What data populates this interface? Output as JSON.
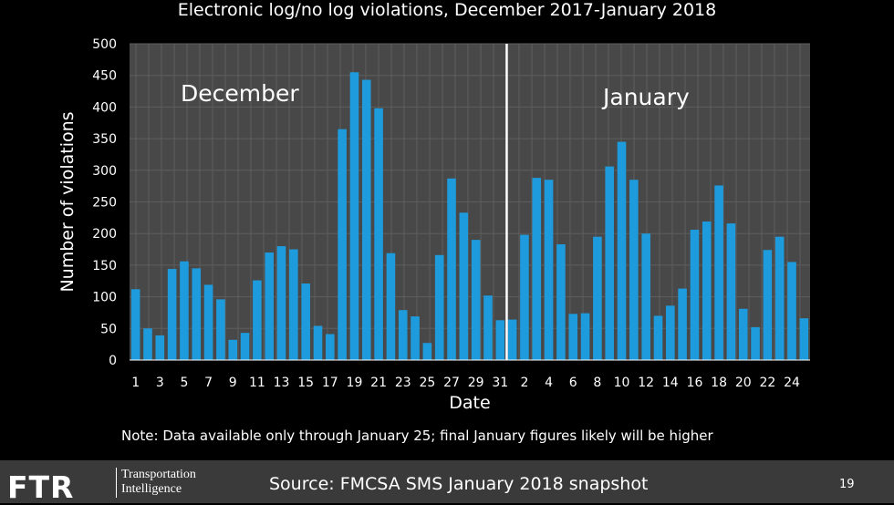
{
  "header": {
    "title": "Electronic log/no log violations, December 2017-January 2018"
  },
  "footer": {
    "logo_text": "FTR",
    "logo_sub_line1": "Transportation",
    "logo_sub_line2": "Intelligence",
    "source": "Source: FMCSA SMS January 2018 snapshot",
    "page_number": "19"
  },
  "note": "Note: Data available only through January 25; final January figures likely will be higher",
  "colors": {
    "bar": "#1e9bdc",
    "plot_bg": "#484848",
    "grid": "#5e5e5e",
    "divider": "#ffffff"
  },
  "chart_data": {
    "type": "bar",
    "title": "Electronic log/no log violations, December 2017-January 2018",
    "xlabel": "Date",
    "ylabel": "Number of violations",
    "ylim": [
      0,
      500
    ],
    "yticks": [
      0,
      50,
      100,
      150,
      200,
      250,
      300,
      350,
      400,
      450,
      500
    ],
    "grid": true,
    "month_labels": [
      {
        "text": "December",
        "series": "december"
      },
      {
        "text": "January",
        "series": "january"
      }
    ],
    "series": [
      {
        "name": "December",
        "key": "december",
        "categories": [
          "1",
          "2",
          "3",
          "4",
          "5",
          "6",
          "7",
          "8",
          "9",
          "10",
          "11",
          "12",
          "13",
          "14",
          "15",
          "16",
          "17",
          "18",
          "19",
          "20",
          "21",
          "22",
          "23",
          "24",
          "25",
          "26",
          "27",
          "28",
          "29",
          "30",
          "31"
        ],
        "tick_labels": [
          "1",
          "3",
          "5",
          "7",
          "9",
          "11",
          "13",
          "15",
          "17",
          "19",
          "21",
          "23",
          "25",
          "27",
          "29",
          "31"
        ],
        "values": [
          112,
          50,
          39,
          144,
          156,
          145,
          119,
          96,
          32,
          43,
          126,
          170,
          180,
          175,
          121,
          54,
          41,
          365,
          455,
          443,
          398,
          169,
          79,
          69,
          27,
          166,
          287,
          233,
          190,
          102,
          63
        ]
      },
      {
        "name": "January",
        "key": "january",
        "categories": [
          "1",
          "2",
          "3",
          "4",
          "5",
          "6",
          "7",
          "8",
          "9",
          "10",
          "11",
          "12",
          "13",
          "14",
          "15",
          "16",
          "17",
          "18",
          "19",
          "20",
          "21",
          "22",
          "23",
          "24",
          "25"
        ],
        "tick_labels": [
          "2",
          "4",
          "6",
          "8",
          "10",
          "12",
          "14",
          "16",
          "18",
          "20",
          "22",
          "24"
        ],
        "values": [
          64,
          198,
          288,
          285,
          183,
          73,
          74,
          195,
          306,
          345,
          285,
          200,
          70,
          86,
          113,
          206,
          219,
          276,
          216,
          81,
          52,
          174,
          195,
          155,
          66
        ]
      }
    ]
  }
}
